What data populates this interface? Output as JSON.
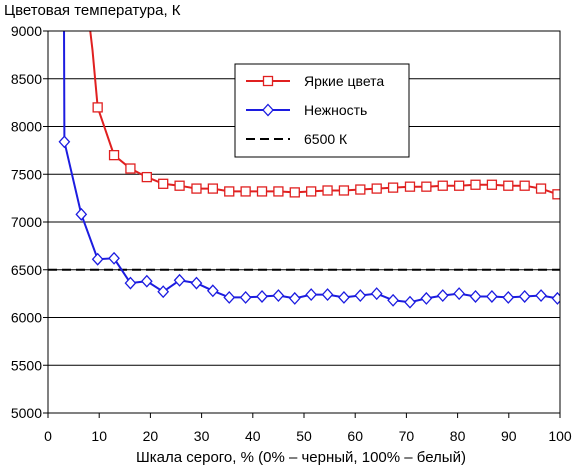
{
  "chart_data": {
    "type": "line",
    "title": "",
    "ylabel": "Цветовая температура, К",
    "xlabel": "Шкала серого, % (0% – черный, 100% – белый)",
    "xlim": [
      0,
      100
    ],
    "ylim": [
      5000,
      9000
    ],
    "x_ticks": [
      "0",
      "10",
      "20",
      "30",
      "40",
      "50",
      "60",
      "70",
      "80",
      "90",
      "100"
    ],
    "y_ticks": [
      "5000",
      "5500",
      "6000",
      "6500",
      "7000",
      "7500",
      "8000",
      "8500",
      "9000"
    ],
    "grid": "horizontal",
    "legend_position": "top-right",
    "series": [
      {
        "name": "Яркие цвета",
        "color": "#e02020",
        "marker": "square",
        "x": [
          9.7,
          12.9,
          16.1,
          19.3,
          22.5,
          25.7,
          29.0,
          32.2,
          35.4,
          38.6,
          41.8,
          45.0,
          48.2,
          51.4,
          54.6,
          57.8,
          61.0,
          64.2,
          67.4,
          70.7,
          73.9,
          77.1,
          80.3,
          83.5,
          86.7,
          89.9,
          93.1,
          96.3,
          99.5
        ],
        "y": [
          8200,
          7700,
          7560,
          7470,
          7400,
          7380,
          7350,
          7350,
          7320,
          7320,
          7320,
          7320,
          7310,
          7320,
          7330,
          7330,
          7340,
          7350,
          7360,
          7370,
          7370,
          7380,
          7380,
          7390,
          7390,
          7380,
          7380,
          7350,
          7290
        ]
      },
      {
        "name": "Нежность",
        "color": "#1c1ce0",
        "marker": "diamond",
        "x": [
          3.2,
          6.5,
          9.7,
          12.9,
          16.1,
          19.3,
          22.5,
          25.7,
          29.0,
          32.2,
          35.4,
          38.6,
          41.8,
          45.0,
          48.2,
          51.4,
          54.6,
          57.8,
          61.0,
          64.2,
          67.4,
          70.7,
          73.9,
          77.1,
          80.3,
          83.5,
          86.7,
          89.9,
          93.1,
          96.3,
          99.5
        ],
        "y": [
          7840,
          7080,
          6610,
          6620,
          6360,
          6380,
          6270,
          6390,
          6360,
          6280,
          6210,
          6210,
          6220,
          6230,
          6200,
          6240,
          6240,
          6210,
          6230,
          6250,
          6180,
          6160,
          6200,
          6230,
          6250,
          6220,
          6220,
          6210,
          6220,
          6230,
          6200
        ]
      },
      {
        "name": "6500 К",
        "color": "#000000",
        "marker": "none",
        "dashed": true,
        "x": [
          0,
          100
        ],
        "y": [
          6500,
          6500
        ]
      }
    ]
  }
}
